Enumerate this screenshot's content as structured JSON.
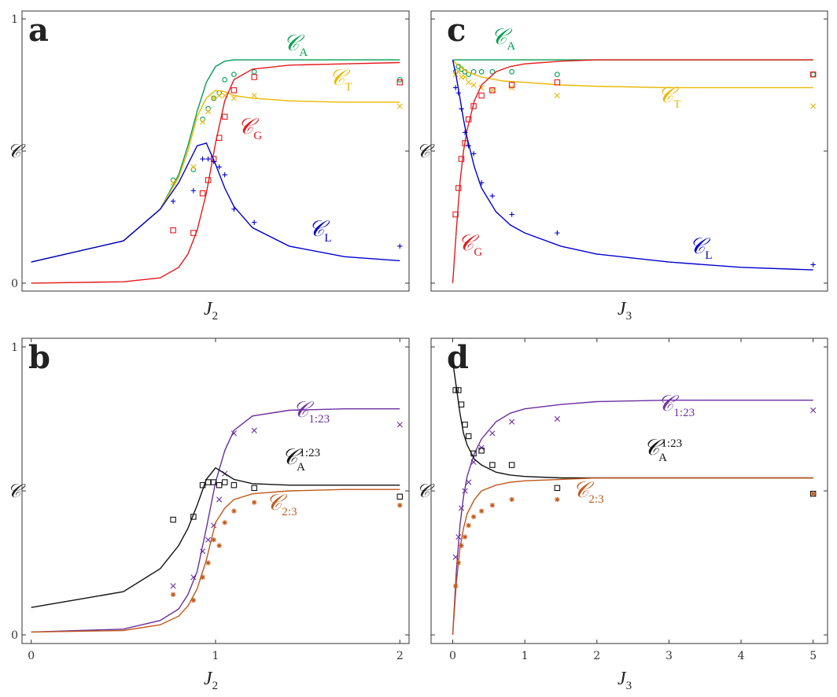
{
  "chart_data": [
    {
      "panel": "a",
      "type": "line",
      "xlabel": "J",
      "xlabel_sub": "2",
      "ylabel": "𝒞",
      "xlim": [
        -0.05,
        2.05
      ],
      "ylim": [
        -0.03,
        1.03
      ],
      "xticks": [],
      "yticks": [
        {
          "v": 0,
          "label": "0"
        },
        {
          "v": 0.5,
          "label": ""
        },
        {
          "v": 1,
          "label": "1"
        }
      ],
      "series": [
        {
          "name": "𝒞",
          "sub": "A",
          "color": "#009e50",
          "marker": "circle",
          "x": [
            0,
            0.5,
            0.7,
            0.8,
            0.85,
            0.9,
            0.95,
            1.0,
            1.05,
            1.1,
            1.2,
            1.4,
            1.7,
            2.0
          ],
          "y": [
            0.08,
            0.16,
            0.28,
            0.41,
            0.52,
            0.65,
            0.76,
            0.82,
            0.84,
            0.845,
            0.845,
            0.845,
            0.845,
            0.845
          ],
          "points_x": [
            0.77,
            0.88,
            0.93,
            0.96,
            0.99,
            1.02,
            1.05,
            1.1,
            1.21,
            2.0
          ],
          "points_y": [
            0.39,
            0.43,
            0.62,
            0.66,
            0.7,
            0.72,
            0.77,
            0.79,
            0.8,
            0.77
          ]
        },
        {
          "name": "𝒞",
          "sub": "T",
          "color": "#e8b800",
          "marker": "x",
          "x": [
            0,
            0.5,
            0.7,
            0.8,
            0.85,
            0.9,
            0.95,
            1.0,
            1.05,
            1.1,
            1.2,
            1.4,
            1.7,
            2.0
          ],
          "y": [
            0.08,
            0.16,
            0.28,
            0.4,
            0.5,
            0.63,
            0.7,
            0.73,
            0.725,
            0.71,
            0.7,
            0.69,
            0.685,
            0.685
          ],
          "points_x": [
            0.77,
            0.88,
            0.93,
            0.96,
            0.99,
            1.02,
            1.05,
            1.1,
            1.21,
            2.0
          ],
          "points_y": [
            0.38,
            0.44,
            0.61,
            0.65,
            0.7,
            0.71,
            0.71,
            0.7,
            0.71,
            0.67
          ]
        },
        {
          "name": "𝒞",
          "sub": "G",
          "color": "#e31a1c",
          "marker": "square",
          "x": [
            0,
            0.5,
            0.7,
            0.8,
            0.85,
            0.9,
            0.95,
            1.0,
            1.05,
            1.1,
            1.2,
            1.4,
            1.7,
            2.0
          ],
          "y": [
            0,
            0.005,
            0.02,
            0.06,
            0.11,
            0.2,
            0.34,
            0.53,
            0.69,
            0.77,
            0.81,
            0.825,
            0.83,
            0.835
          ],
          "points_x": [
            0.77,
            0.88,
            0.93,
            0.96,
            0.99,
            1.02,
            1.05,
            1.1,
            1.21,
            2.0
          ],
          "points_y": [
            0.2,
            0.19,
            0.34,
            0.39,
            0.47,
            0.55,
            0.63,
            0.73,
            0.78,
            0.76
          ]
        },
        {
          "name": "𝒞",
          "sub": "L",
          "color": "#0000cc",
          "marker": "plus",
          "x": [
            0,
            0.5,
            0.7,
            0.8,
            0.85,
            0.9,
            0.95,
            1.0,
            1.05,
            1.1,
            1.2,
            1.4,
            1.7,
            2.0
          ],
          "y": [
            0.08,
            0.16,
            0.28,
            0.38,
            0.45,
            0.52,
            0.53,
            0.45,
            0.36,
            0.29,
            0.21,
            0.14,
            0.1,
            0.085
          ],
          "points_x": [
            0.77,
            0.88,
            0.93,
            0.96,
            0.99,
            1.02,
            1.05,
            1.1,
            1.21,
            2.0
          ],
          "points_y": [
            0.31,
            0.35,
            0.47,
            0.47,
            0.46,
            0.44,
            0.41,
            0.28,
            0.23,
            0.14
          ]
        }
      ]
    },
    {
      "panel": "c",
      "type": "line",
      "xlabel": "J",
      "xlabel_sub": "3",
      "ylabel": "𝒞",
      "xlim": [
        -0.3,
        5.2
      ],
      "ylim": [
        -0.03,
        1.03
      ],
      "xticks": [],
      "yticks": [
        {
          "v": 0,
          "label": ""
        },
        {
          "v": 0.5,
          "label": ""
        },
        {
          "v": 1,
          "label": ""
        }
      ],
      "series": [
        {
          "name": "𝒞",
          "sub": "A",
          "color": "#009e50",
          "marker": "circle",
          "x": [
            0,
            0.05,
            0.2,
            0.5,
            1,
            2,
            3,
            5
          ],
          "y": [
            0.845,
            0.845,
            0.845,
            0.845,
            0.845,
            0.845,
            0.845,
            0.845
          ],
          "points_x": [
            0.04,
            0.08,
            0.12,
            0.17,
            0.22,
            0.29,
            0.4,
            0.55,
            0.82,
            1.45,
            5.0
          ],
          "points_y": [
            0.8,
            0.82,
            0.81,
            0.8,
            0.79,
            0.8,
            0.8,
            0.8,
            0.8,
            0.79,
            0.79
          ]
        },
        {
          "name": "𝒞",
          "sub": "T",
          "color": "#e8b800",
          "marker": "x",
          "x": [
            0,
            0.05,
            0.1,
            0.2,
            0.4,
            0.7,
            1,
            1.5,
            2,
            3,
            4,
            5
          ],
          "y": [
            0.845,
            0.83,
            0.82,
            0.8,
            0.78,
            0.765,
            0.76,
            0.75,
            0.745,
            0.74,
            0.74,
            0.74
          ],
          "points_x": [
            0.04,
            0.08,
            0.12,
            0.17,
            0.22,
            0.29,
            0.4,
            0.55,
            0.82,
            1.45,
            5.0
          ],
          "points_y": [
            0.79,
            0.8,
            0.78,
            0.78,
            0.76,
            0.75,
            0.74,
            0.73,
            0.74,
            0.71,
            0.67
          ]
        },
        {
          "name": "𝒞",
          "sub": "G",
          "color": "#e31a1c",
          "marker": "square",
          "x": [
            0,
            0.05,
            0.1,
            0.15,
            0.2,
            0.3,
            0.4,
            0.6,
            0.8,
            1,
            1.5,
            2,
            3,
            4,
            5
          ],
          "y": [
            0,
            0.2,
            0.38,
            0.5,
            0.58,
            0.69,
            0.75,
            0.8,
            0.82,
            0.83,
            0.84,
            0.845,
            0.845,
            0.845,
            0.845
          ],
          "points_x": [
            0.04,
            0.08,
            0.12,
            0.17,
            0.22,
            0.29,
            0.4,
            0.55,
            0.82,
            1.45,
            5.0
          ],
          "points_y": [
            0.26,
            0.36,
            0.47,
            0.53,
            0.62,
            0.67,
            0.71,
            0.73,
            0.75,
            0.76,
            0.79
          ]
        },
        {
          "name": "𝒞",
          "sub": "L",
          "color": "#0000cc",
          "marker": "plus",
          "x": [
            0,
            0.05,
            0.1,
            0.15,
            0.2,
            0.3,
            0.4,
            0.6,
            0.8,
            1,
            1.5,
            2,
            3,
            4,
            5
          ],
          "y": [
            0.845,
            0.78,
            0.7,
            0.62,
            0.55,
            0.44,
            0.36,
            0.27,
            0.22,
            0.19,
            0.14,
            0.11,
            0.08,
            0.06,
            0.05
          ],
          "points_x": [
            0.04,
            0.08,
            0.12,
            0.17,
            0.22,
            0.29,
            0.4,
            0.55,
            0.82,
            1.45,
            5.0
          ],
          "points_y": [
            0.74,
            0.72,
            0.66,
            0.57,
            0.52,
            0.49,
            0.38,
            0.33,
            0.26,
            0.19,
            0.07
          ]
        }
      ]
    },
    {
      "panel": "b",
      "type": "line",
      "xlabel": "J",
      "xlabel_sub": "2",
      "ylabel": "𝒞",
      "xlim": [
        -0.05,
        2.05
      ],
      "ylim": [
        -0.03,
        1.03
      ],
      "xticks": [
        {
          "v": 0,
          "label": "0"
        },
        {
          "v": 1,
          "label": "1"
        },
        {
          "v": 2,
          "label": "2"
        }
      ],
      "yticks": [
        {
          "v": 0,
          "label": "0"
        },
        {
          "v": 0.5,
          "label": ""
        },
        {
          "v": 1,
          "label": "1"
        }
      ],
      "series": [
        {
          "name": "𝒞",
          "sub": "1:23",
          "color": "#6a2fa0",
          "marker": "x",
          "x": [
            0,
            0.5,
            0.7,
            0.8,
            0.85,
            0.9,
            0.95,
            1.0,
            1.05,
            1.1,
            1.2,
            1.4,
            1.7,
            2.0
          ],
          "y": [
            0.01,
            0.02,
            0.05,
            0.09,
            0.14,
            0.22,
            0.37,
            0.53,
            0.64,
            0.71,
            0.76,
            0.78,
            0.785,
            0.785
          ],
          "points_x": [
            0.77,
            0.88,
            0.93,
            0.96,
            0.99,
            1.02,
            1.05,
            1.1,
            1.21,
            2.0
          ],
          "points_y": [
            0.17,
            0.2,
            0.29,
            0.33,
            0.38,
            0.47,
            0.56,
            0.7,
            0.71,
            0.73
          ]
        },
        {
          "name": "𝒞",
          "sub": "1:23",
          "supname": "A",
          "color": "#111111",
          "marker": "square",
          "x": [
            0,
            0.5,
            0.7,
            0.8,
            0.85,
            0.9,
            0.95,
            1.0,
            1.05,
            1.1,
            1.2,
            1.4,
            1.7,
            2.0
          ],
          "y": [
            0.095,
            0.15,
            0.23,
            0.31,
            0.37,
            0.45,
            0.54,
            0.58,
            0.56,
            0.54,
            0.525,
            0.52,
            0.52,
            0.52
          ],
          "points_x": [
            0.77,
            0.88,
            0.93,
            0.96,
            0.99,
            1.02,
            1.05,
            1.1,
            1.21,
            2.0
          ],
          "points_y": [
            0.4,
            0.41,
            0.52,
            0.53,
            0.53,
            0.52,
            0.53,
            0.52,
            0.51,
            0.48
          ]
        },
        {
          "name": "𝒞",
          "sub": "2:3",
          "color": "#c0581a",
          "marker": "star",
          "x": [
            0,
            0.5,
            0.7,
            0.8,
            0.85,
            0.9,
            0.95,
            1.0,
            1.05,
            1.1,
            1.2,
            1.4,
            1.7,
            2.0
          ],
          "y": [
            0.01,
            0.015,
            0.035,
            0.065,
            0.1,
            0.16,
            0.26,
            0.39,
            0.44,
            0.47,
            0.49,
            0.5,
            0.505,
            0.505
          ],
          "points_x": [
            0.77,
            0.88,
            0.93,
            0.96,
            0.99,
            1.02,
            1.05,
            1.1,
            1.21,
            2.0
          ],
          "points_y": [
            0.14,
            0.12,
            0.2,
            0.25,
            0.33,
            0.31,
            0.39,
            0.43,
            0.46,
            0.45
          ]
        }
      ]
    },
    {
      "panel": "d",
      "type": "line",
      "xlabel": "J",
      "xlabel_sub": "3",
      "ylabel": "𝒞",
      "xlim": [
        -0.3,
        5.2
      ],
      "ylim": [
        -0.03,
        1.03
      ],
      "xticks": [
        {
          "v": 0,
          "label": "0"
        },
        {
          "v": 1,
          "label": "1"
        },
        {
          "v": 2,
          "label": "2"
        },
        {
          "v": 3,
          "label": "3"
        },
        {
          "v": 4,
          "label": "4"
        },
        {
          "v": 5,
          "label": "5"
        }
      ],
      "yticks": [
        {
          "v": 0,
          "label": ""
        },
        {
          "v": 0.5,
          "label": ""
        },
        {
          "v": 1,
          "label": ""
        }
      ],
      "series": [
        {
          "name": "𝒞",
          "sub": "1:23",
          "color": "#6a2fa0",
          "marker": "x",
          "x": [
            0,
            0.05,
            0.1,
            0.15,
            0.2,
            0.3,
            0.4,
            0.6,
            0.8,
            1,
            1.5,
            2,
            3,
            4,
            5
          ],
          "y": [
            0,
            0.22,
            0.38,
            0.48,
            0.55,
            0.63,
            0.68,
            0.74,
            0.77,
            0.785,
            0.8,
            0.81,
            0.815,
            0.815,
            0.815
          ],
          "points_x": [
            0.04,
            0.08,
            0.12,
            0.17,
            0.22,
            0.29,
            0.4,
            0.55,
            0.82,
            1.45,
            5.0
          ],
          "points_y": [
            0.27,
            0.34,
            0.44,
            0.5,
            0.53,
            0.6,
            0.65,
            0.7,
            0.74,
            0.75,
            0.78
          ]
        },
        {
          "name": "𝒞",
          "sub": "1:23",
          "supname": "A",
          "color": "#111111",
          "marker": "square",
          "x": [
            0,
            0.05,
            0.1,
            0.15,
            0.2,
            0.3,
            0.4,
            0.6,
            0.8,
            1,
            1.5,
            2,
            3,
            4,
            5
          ],
          "y": [
            0.95,
            0.86,
            0.77,
            0.7,
            0.66,
            0.61,
            0.59,
            0.565,
            0.555,
            0.55,
            0.545,
            0.545,
            0.545,
            0.545,
            0.545
          ],
          "points_x": [
            0.04,
            0.08,
            0.12,
            0.17,
            0.22,
            0.29,
            0.4,
            0.55,
            0.82,
            1.45,
            5.0
          ],
          "points_y": [
            0.85,
            0.85,
            0.8,
            0.73,
            0.69,
            0.63,
            0.64,
            0.59,
            0.59,
            0.51,
            0.49
          ]
        },
        {
          "name": "𝒞",
          "sub": "2:3",
          "color": "#c0581a",
          "marker": "star",
          "x": [
            0,
            0.05,
            0.1,
            0.15,
            0.2,
            0.3,
            0.4,
            0.6,
            0.8,
            1,
            1.5,
            2,
            3,
            4,
            5
          ],
          "y": [
            0,
            0.18,
            0.3,
            0.37,
            0.42,
            0.47,
            0.5,
            0.52,
            0.53,
            0.535,
            0.54,
            0.545,
            0.545,
            0.545,
            0.545
          ],
          "points_x": [
            0.04,
            0.08,
            0.12,
            0.17,
            0.22,
            0.29,
            0.4,
            0.55,
            0.82,
            1.45,
            5.0
          ],
          "points_y": [
            0.17,
            0.25,
            0.31,
            0.34,
            0.38,
            0.41,
            0.43,
            0.45,
            0.47,
            0.47,
            0.49
          ]
        }
      ]
    }
  ]
}
